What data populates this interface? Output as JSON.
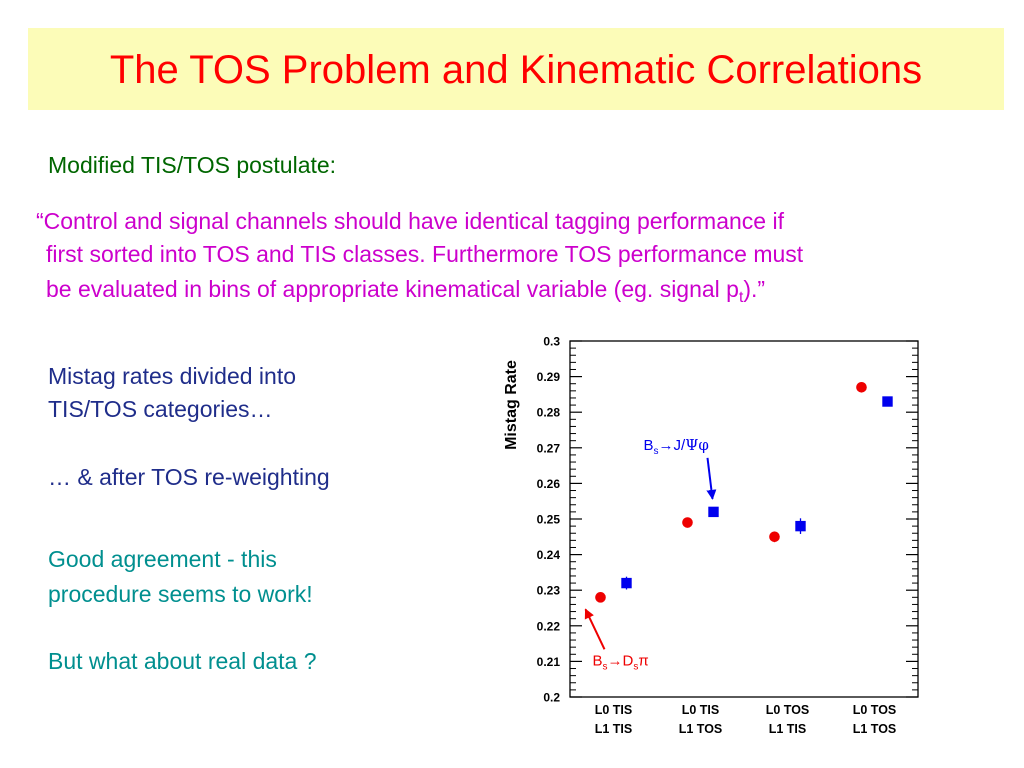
{
  "slide": {
    "title": "The TOS Problem and Kinematic Correlations",
    "subtitle": "Modified TIS/TOS postulate:",
    "quote": {
      "line1": "“Control and signal channels should have identical tagging performance if",
      "line2": "first sorted into TOS and TIS classes. Furthermore TOS performance must",
      "line3_before": "be evaluated in bins of appropriate kinematical variable (eg. signal p",
      "line3_sub": "t",
      "line3_after": ").”"
    },
    "notes": {
      "mistag_line1": "Mistag rates divided into",
      "mistag_line2": "TIS/TOS categories…",
      "after_tos": "… & after TOS  re-weighting",
      "good_line1": "Good agreement - this",
      "good_line2": "procedure seems to work!",
      "real_data": "But what about real data ?"
    },
    "colors": {
      "title": "#ff0000",
      "title_background": "#fcfcb8",
      "subtitle": "#006600",
      "quote": "#cc00cc",
      "notes_primary": "#1f2d8a",
      "notes_secondary": "#008f8f"
    }
  },
  "chart_data": {
    "type": "scatter",
    "ylabel": "Mistag Rate",
    "xlabel": "",
    "ylim": [
      0.2,
      0.3
    ],
    "y_ticks": [
      "0.2",
      "0.21",
      "0.22",
      "0.23",
      "0.24",
      "0.25",
      "0.26",
      "0.27",
      "0.28",
      "0.29",
      "0.3"
    ],
    "categories": [
      {
        "line1": "L0 TIS",
        "line2": "L1 TIS"
      },
      {
        "line1": "L0 TIS",
        "line2": "L1 TOS"
      },
      {
        "line1": "L0 TOS",
        "line2": "L1 TIS"
      },
      {
        "line1": "L0 TOS",
        "line2": "L1 TOS"
      }
    ],
    "series": [
      {
        "marker": "circle",
        "color": "#ee0000",
        "values": [
          0.228,
          0.249,
          0.245,
          0.287
        ],
        "errors": [
          0.0012,
          0.0012,
          0.0015,
          0.0012
        ]
      },
      {
        "marker": "square",
        "color": "#0000ee",
        "values": [
          0.232,
          0.252,
          0.248,
          0.283
        ],
        "errors": [
          0.0018,
          0.0012,
          0.0022,
          0.0012
        ]
      }
    ],
    "annotations": [
      {
        "base": "B",
        "base_sub": "s",
        "arrow": "→",
        "rest": "J/",
        "greek": [
          "Ψ",
          "φ"
        ],
        "rest_sub": "",
        "tail": "",
        "color": "#0000ee",
        "series_index": 1,
        "category_index": 1
      },
      {
        "base": "B",
        "base_sub": "s",
        "arrow": "→",
        "rest": "D",
        "rest_sub": "s",
        "tail": "π",
        "greek": [],
        "color": "#ee0000",
        "series_index": 0,
        "category_index": 0
      }
    ],
    "grid": false,
    "legend": "none"
  }
}
